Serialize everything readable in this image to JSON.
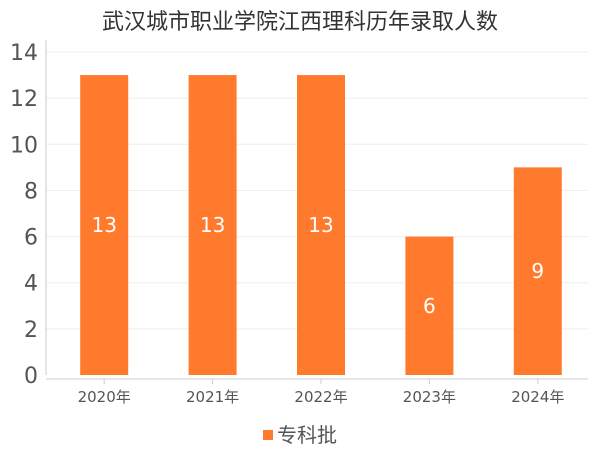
{
  "chart_data": {
    "type": "bar",
    "title": "武汉城市职业学院江西理科历年录取人数",
    "categories": [
      "2020年",
      "2021年",
      "2022年",
      "2023年",
      "2024年"
    ],
    "series": [
      {
        "name": "专科批",
        "values": [
          13,
          13,
          13,
          6,
          9
        ]
      }
    ],
    "xlabel": "",
    "ylabel": "",
    "ylim": [
      0,
      14
    ],
    "yticks": [
      0,
      2,
      4,
      6,
      8,
      10,
      12,
      14
    ],
    "grid": true,
    "legend_position": "bottom-center",
    "data_labels": true,
    "bar_color": "#ff7a2d",
    "grid_color": "#eeeeee",
    "axis_color": "#cccccc"
  }
}
